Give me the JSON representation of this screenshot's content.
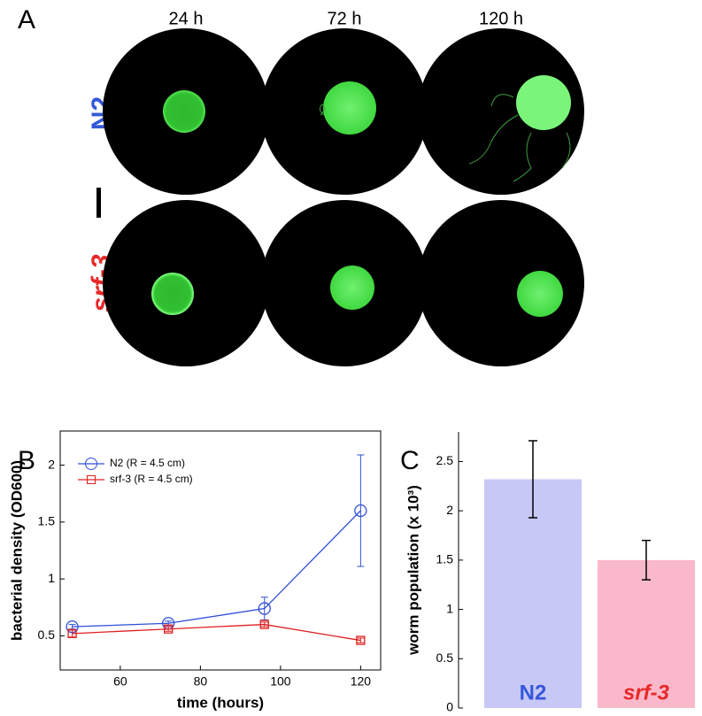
{
  "panel_a": {
    "label": "A",
    "columns": [
      "24 h",
      "72 h",
      "120 h"
    ],
    "rows": [
      "N2",
      "srf-3"
    ]
  },
  "chart_data": [
    {
      "type": "line",
      "panel": "B",
      "x_label": "time (hours)",
      "y_label": "bacterial density (OD600)",
      "x": [
        48,
        72,
        96,
        120
      ],
      "series": [
        {
          "name": "N2 (R = 4.5 cm)",
          "color": "#2f4fd8",
          "marker": "o",
          "values": [
            0.58,
            0.61,
            0.74,
            1.6
          ],
          "errors": [
            0.02,
            0.02,
            0.1,
            0.49
          ]
        },
        {
          "name": "srf-3 (R = 4.5 cm)",
          "color": "#e02020",
          "marker": "s",
          "values": [
            0.52,
            0.56,
            0.6,
            0.46
          ],
          "errors": [
            0.03,
            0.02,
            0.02,
            0.02
          ]
        }
      ],
      "xlim": [
        45,
        125
      ],
      "xticks": [
        60,
        80,
        100,
        120
      ],
      "ylim": [
        0.2,
        2.3
      ],
      "yticks": [
        0.5,
        1,
        1.5,
        2
      ],
      "legend": "upper left"
    },
    {
      "type": "bar",
      "panel": "C",
      "y_label": "worm population (x 10³)",
      "categories": [
        "N2",
        "srf-3"
      ],
      "category_colors": [
        "#3558d8",
        "#e82828"
      ],
      "colors": [
        "#c8c8f6",
        "#fab9cb"
      ],
      "values": [
        2.32,
        1.5
      ],
      "errors": [
        0.39,
        0.2
      ],
      "ylim": [
        0,
        2.8
      ],
      "yticks": [
        0,
        0.5,
        1,
        1.5,
        2,
        2.5
      ]
    }
  ]
}
